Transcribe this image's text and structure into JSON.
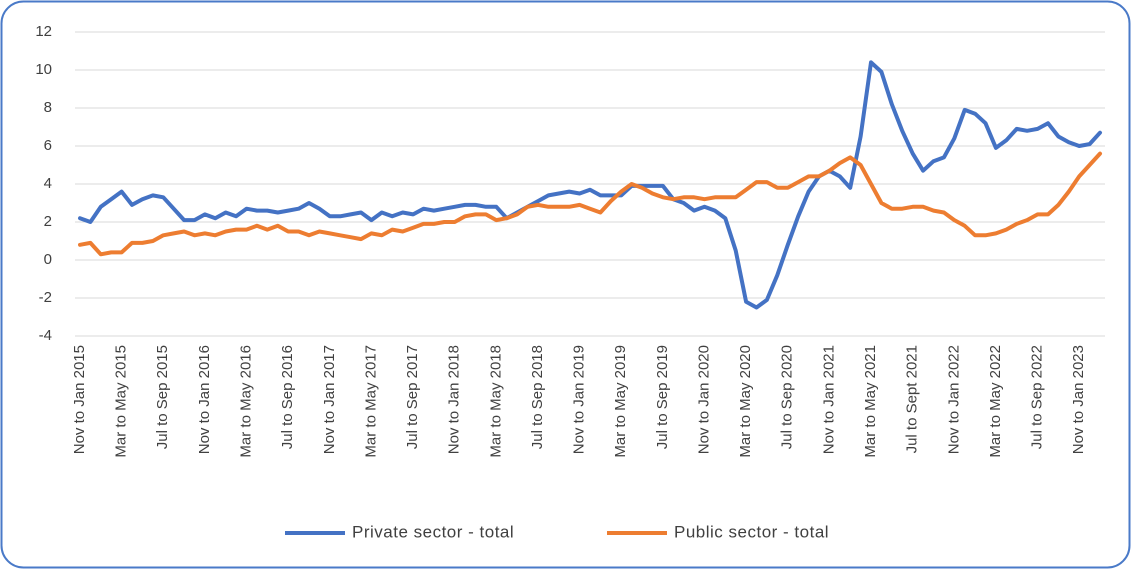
{
  "chart_data": {
    "type": "line",
    "categories": [
      "Nov to Jan 2015",
      null,
      null,
      null,
      "Mar to May 2015",
      null,
      null,
      null,
      "Jul to Sep 2015",
      null,
      null,
      null,
      "Nov to Jan 2016",
      null,
      null,
      null,
      "Mar to May 2016",
      null,
      null,
      null,
      "Jul to Sep 2016",
      null,
      null,
      null,
      "Nov to Jan 2017",
      null,
      null,
      null,
      "Mar to May 2017",
      null,
      null,
      null,
      "Jul to Sep 2017",
      null,
      null,
      null,
      "Nov to Jan 2018",
      null,
      null,
      null,
      "Mar to May 2018",
      null,
      null,
      null,
      "Jul to Sep 2018",
      null,
      null,
      null,
      "Nov to Jan 2019",
      null,
      null,
      null,
      "Mar to May 2019",
      null,
      null,
      null,
      "Jul to Sep 2019",
      null,
      null,
      null,
      "Nov to Jan 2020",
      null,
      null,
      null,
      "Mar to May 2020",
      null,
      null,
      null,
      "Jul to Sep 2020",
      null,
      null,
      null,
      "Nov to Jan 2021",
      null,
      null,
      null,
      "Mar to May 2021",
      null,
      null,
      null,
      "Jul to Sept 2021",
      null,
      null,
      null,
      "Nov to Jan 2022",
      null,
      null,
      null,
      "Mar to May 2022",
      null,
      null,
      null,
      "Jul to Sep 2022",
      null,
      null,
      null,
      "Nov to Jan 2023",
      null,
      null
    ],
    "series": [
      {
        "name": "Private sector - total",
        "color": "#4472c4",
        "values": [
          2.2,
          2.0,
          2.8,
          3.2,
          3.6,
          2.9,
          3.2,
          3.4,
          3.3,
          2.7,
          2.1,
          2.1,
          2.4,
          2.2,
          2.5,
          2.3,
          2.7,
          2.6,
          2.6,
          2.5,
          2.6,
          2.7,
          3.0,
          2.7,
          2.3,
          2.3,
          2.4,
          2.5,
          2.1,
          2.5,
          2.3,
          2.5,
          2.4,
          2.7,
          2.6,
          2.7,
          2.8,
          2.9,
          2.9,
          2.8,
          2.8,
          2.2,
          2.5,
          2.8,
          3.1,
          3.4,
          3.5,
          3.6,
          3.5,
          3.7,
          3.4,
          3.4,
          3.4,
          3.9,
          3.9,
          3.9,
          3.9,
          3.2,
          3.0,
          2.6,
          2.8,
          2.6,
          2.2,
          0.5,
          -2.2,
          -2.5,
          -2.1,
          -0.8,
          0.8,
          2.3,
          3.6,
          4.4,
          4.7,
          4.4,
          3.8,
          6.5,
          10.4,
          9.9,
          8.2,
          6.8,
          5.6,
          4.7,
          5.2,
          5.4,
          6.4,
          7.9,
          7.7,
          7.2,
          5.9,
          6.3,
          6.9,
          6.8,
          6.9,
          7.2,
          6.5,
          6.2,
          6.0,
          6.1,
          6.7
        ]
      },
      {
        "name": "Public sector - total",
        "color": "#ed7d31",
        "values": [
          0.8,
          0.9,
          0.3,
          0.4,
          0.4,
          0.9,
          0.9,
          1.0,
          1.3,
          1.4,
          1.5,
          1.3,
          1.4,
          1.3,
          1.5,
          1.6,
          1.6,
          1.8,
          1.6,
          1.8,
          1.5,
          1.5,
          1.3,
          1.5,
          1.4,
          1.3,
          1.2,
          1.1,
          1.4,
          1.3,
          1.6,
          1.5,
          1.7,
          1.9,
          1.9,
          2.0,
          2.0,
          2.3,
          2.4,
          2.4,
          2.1,
          2.2,
          2.4,
          2.8,
          2.9,
          2.8,
          2.8,
          2.8,
          2.9,
          2.7,
          2.5,
          3.1,
          3.6,
          4.0,
          3.8,
          3.5,
          3.3,
          3.2,
          3.3,
          3.3,
          3.2,
          3.3,
          3.3,
          3.3,
          3.7,
          4.1,
          4.1,
          3.8,
          3.8,
          4.1,
          4.4,
          4.4,
          4.7,
          5.1,
          5.4,
          5.0,
          4.0,
          3.0,
          2.7,
          2.7,
          2.8,
          2.8,
          2.6,
          2.5,
          2.1,
          1.8,
          1.3,
          1.3,
          1.4,
          1.6,
          1.9,
          2.1,
          2.4,
          2.4,
          2.9,
          3.6,
          4.4,
          5.0,
          5.6
        ]
      }
    ],
    "ylim": [
      -4,
      12
    ],
    "yticks": [
      -4,
      -2,
      0,
      2,
      4,
      6,
      8,
      10,
      12
    ],
    "grid": true,
    "legend": "bottom"
  }
}
